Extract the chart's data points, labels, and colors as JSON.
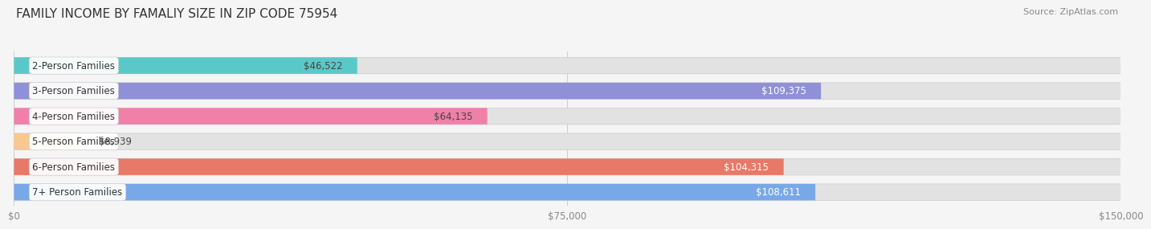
{
  "title": "FAMILY INCOME BY FAMALIY SIZE IN ZIP CODE 75954",
  "source": "Source: ZipAtlas.com",
  "categories": [
    "2-Person Families",
    "3-Person Families",
    "4-Person Families",
    "5-Person Families",
    "6-Person Families",
    "7+ Person Families"
  ],
  "values": [
    46522,
    109375,
    64135,
    8939,
    104315,
    108611
  ],
  "bar_colors": [
    "#5bc8c8",
    "#9090d8",
    "#f080a8",
    "#f8c890",
    "#e87868",
    "#78a8e8"
  ],
  "label_colors": [
    "#444444",
    "#ffffff",
    "#444444",
    "#444444",
    "#ffffff",
    "#ffffff"
  ],
  "xlim": [
    0,
    150000
  ],
  "xticks": [
    0,
    75000,
    150000
  ],
  "xtick_labels": [
    "$0",
    "$75,000",
    "$150,000"
  ],
  "background_color": "#f5f5f5",
  "bar_bg_color": "#e2e2e2",
  "title_fontsize": 11,
  "source_fontsize": 8,
  "bar_height": 0.65,
  "label_fontsize": 8.5,
  "cat_fontsize": 8.5,
  "value_labels": [
    "$46,522",
    "$109,375",
    "$64,135",
    "$8,939",
    "$104,315",
    "$108,611"
  ]
}
